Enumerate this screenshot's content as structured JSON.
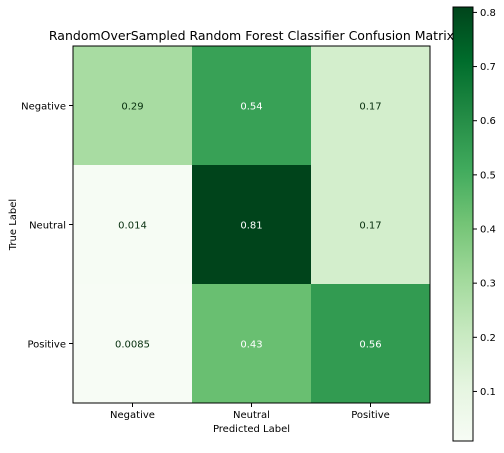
{
  "chart_data": {
    "type": "heatmap",
    "title": "RandomOverSampled Random Forest Classifier Confusion Matrix",
    "xlabel": "Predicted Label",
    "ylabel": "True Label",
    "x_categories": [
      "Negative",
      "Neutral",
      "Positive"
    ],
    "y_categories": [
      "Negative",
      "Neutral",
      "Positive"
    ],
    "values": [
      [
        0.29,
        0.54,
        0.17
      ],
      [
        0.014,
        0.81,
        0.17
      ],
      [
        0.0085,
        0.43,
        0.56
      ]
    ],
    "value_labels": [
      [
        "0.29",
        "0.54",
        "0.17"
      ],
      [
        "0.014",
        "0.81",
        "0.17"
      ],
      [
        "0.0085",
        "0.43",
        "0.56"
      ]
    ],
    "colormap": "Greens",
    "colorbar": {
      "min": 0.0085,
      "max": 0.81,
      "ticks": [
        0.1,
        0.2,
        0.3,
        0.4,
        0.5,
        0.6,
        0.7,
        0.8
      ],
      "tick_labels": [
        "0.1",
        "0.2",
        "0.3",
        "0.4",
        "0.5",
        "0.6",
        "0.7",
        "0.8"
      ]
    },
    "grid": false
  }
}
